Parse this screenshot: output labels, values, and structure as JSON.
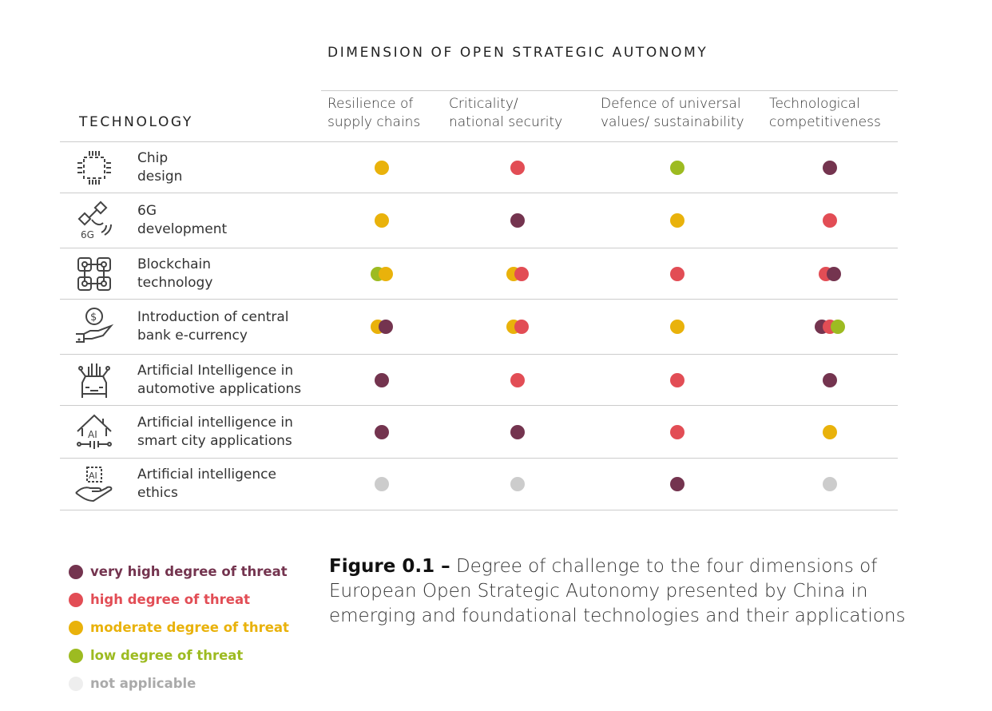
{
  "title": "DIMENSION OF OPEN STRATEGIC AUTONOMY",
  "technology_header": "TECHNOLOGY",
  "columns": [
    {
      "line1": "Resilience of",
      "line2": "supply chains"
    },
    {
      "line1": "Criticality/",
      "line2": "national security"
    },
    {
      "line1": "Defence of universal",
      "line2": "values/ sustainability"
    },
    {
      "line1": "Technological",
      "line2": "competitiveness"
    }
  ],
  "colors": {
    "very_high": "#74344f",
    "high": "#e24d55",
    "moderate": "#e9b20b",
    "low": "#9dbb21",
    "na": "#cccccc",
    "na_legend": "#eeeeee",
    "na_text": "#aaaaaa"
  },
  "rows": [
    {
      "icon": "chip-icon",
      "line1": "Chip",
      "line2": "design",
      "cells": [
        [
          "moderate"
        ],
        [
          "high"
        ],
        [
          "low"
        ],
        [
          "very_high"
        ]
      ]
    },
    {
      "icon": "satellite-6g-icon",
      "line1": "6G",
      "line2": "development",
      "cells": [
        [
          "moderate"
        ],
        [
          "very_high"
        ],
        [
          "moderate"
        ],
        [
          "high"
        ]
      ]
    },
    {
      "icon": "blockchain-icon",
      "line1": "Blockchain",
      "line2": "technology",
      "cells": [
        [
          "low",
          "moderate"
        ],
        [
          "moderate",
          "high"
        ],
        [
          "high"
        ],
        [
          "high",
          "very_high"
        ]
      ]
    },
    {
      "icon": "hand-coin-icon",
      "line1": "Introduction of central",
      "line2": "bank e-currency",
      "cells": [
        [
          "moderate",
          "very_high"
        ],
        [
          "moderate",
          "high"
        ],
        [
          "moderate"
        ],
        [
          "very_high",
          "high",
          "low"
        ]
      ]
    },
    {
      "icon": "ai-car-icon",
      "line1": "Artificial Intelligence in",
      "line2": "automotive applications",
      "cells": [
        [
          "very_high"
        ],
        [
          "high"
        ],
        [
          "high"
        ],
        [
          "very_high"
        ]
      ]
    },
    {
      "icon": "ai-house-icon",
      "line1": "Artificial intelligence in",
      "line2": "smart city applications",
      "cells": [
        [
          "very_high"
        ],
        [
          "very_high"
        ],
        [
          "high"
        ],
        [
          "moderate"
        ]
      ]
    },
    {
      "icon": "ai-hand-chip-icon",
      "line1": "Artificial intelligence",
      "line2": "ethics",
      "cells": [
        [
          "na"
        ],
        [
          "na"
        ],
        [
          "very_high"
        ],
        [
          "na"
        ]
      ]
    }
  ],
  "legend": [
    {
      "key": "very_high",
      "label": "very high degree of threat"
    },
    {
      "key": "high",
      "label": "high degree of threat"
    },
    {
      "key": "moderate",
      "label": "moderate degree of threat"
    },
    {
      "key": "low",
      "label": "low degree of threat"
    },
    {
      "key": "na",
      "label": "not applicable"
    }
  ],
  "caption": {
    "figure": "Figure 0.1 –",
    "text": " Degree of challenge to the four dimensions of European Open Strategic Autonomy presented by China in emerging and foundational technologies and their applications"
  }
}
